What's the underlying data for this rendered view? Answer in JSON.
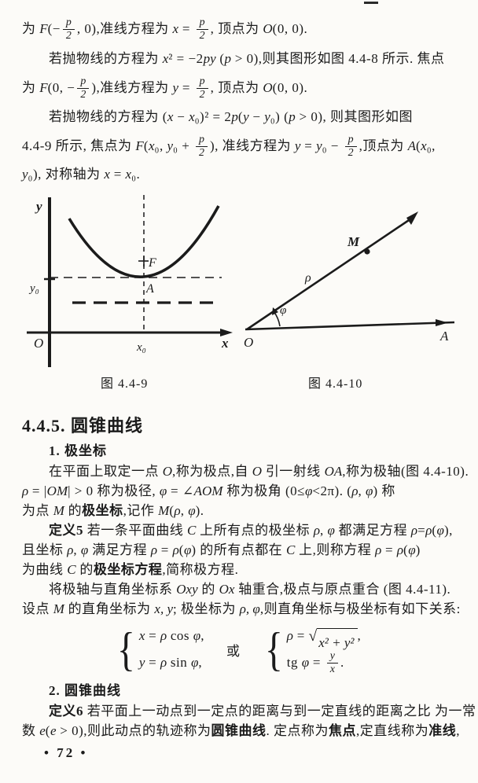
{
  "page_number": "• 72 •",
  "intro": {
    "lines": [
      [
        {
          "s": "为 "
        },
        {
          "m": "F"
        },
        {
          "s": "(−"
        },
        {
          "f": [
            "p",
            "2"
          ]
        },
        {
          "s": ", 0)"
        },
        {
          "s": ",准线方程为 "
        },
        {
          "m": "x"
        },
        {
          "s": " = "
        },
        {
          "f": [
            "p",
            "2"
          ]
        },
        {
          "s": ", 顶点为 "
        },
        {
          "m": "O"
        },
        {
          "s": "(0, 0)."
        }
      ],
      [
        {
          "s": "若抛物线的方程为 "
        },
        {
          "m": "x"
        },
        {
          "s": "² = −2"
        },
        {
          "m": "py"
        },
        {
          "s": " ("
        },
        {
          "m": "p"
        },
        {
          "s": " > 0),则其图形如图 4.4-8 所示. 焦点"
        }
      ],
      [
        {
          "s": "为 "
        },
        {
          "m": "F"
        },
        {
          "s": "(0, −"
        },
        {
          "f": [
            "p",
            "2"
          ]
        },
        {
          "s": ")"
        },
        {
          "s": ",准线方程为 "
        },
        {
          "m": "y"
        },
        {
          "s": " = "
        },
        {
          "f": [
            "p",
            "2"
          ]
        },
        {
          "s": ", 顶点为 "
        },
        {
          "m": "O"
        },
        {
          "s": "(0, 0)."
        }
      ],
      [
        {
          "s": "若抛物线的方程为 ("
        },
        {
          "m": "x"
        },
        {
          "s": " − "
        },
        {
          "m": "x"
        },
        {
          "s": "₀)² = 2"
        },
        {
          "m": "p"
        },
        {
          "s": "("
        },
        {
          "m": "y"
        },
        {
          "s": " − "
        },
        {
          "m": "y"
        },
        {
          "s": "₀) ("
        },
        {
          "m": "p"
        },
        {
          "s": " > 0), 则其图形如图"
        }
      ],
      [
        {
          "s": "4.4-9 所示, 焦点为 "
        },
        {
          "m": "F"
        },
        {
          "s": "("
        },
        {
          "m": "x"
        },
        {
          "s": "₀, "
        },
        {
          "m": "y"
        },
        {
          "s": "₀ + "
        },
        {
          "f": [
            "p",
            "2"
          ]
        },
        {
          "s": "), 准线方程为 "
        },
        {
          "m": "y"
        },
        {
          "s": " = "
        },
        {
          "m": "y"
        },
        {
          "s": "₀ − "
        },
        {
          "f": [
            "p",
            "2"
          ]
        },
        {
          "s": ",顶点为 "
        },
        {
          "m": "A"
        },
        {
          "s": "("
        },
        {
          "m": "x"
        },
        {
          "s": "₀,"
        }
      ],
      [
        {
          "m": "y"
        },
        {
          "s": "₀), 对称轴为 "
        },
        {
          "m": "x"
        },
        {
          "s": " = "
        },
        {
          "m": "x"
        },
        {
          "s": "₀."
        }
      ]
    ]
  },
  "figures": {
    "fig9": {
      "caption": "图  4.4-9",
      "labels": {
        "y_axis": "y",
        "x_axis": "x",
        "origin": "O",
        "y0": "y₀",
        "x0": "x₀",
        "focus": "F",
        "vertex": "A"
      }
    },
    "fig10": {
      "caption": "图  4.4-10",
      "labels": {
        "pole": "O",
        "axis_end": "A",
        "point": "M",
        "rho": "ρ",
        "phi": "φ"
      }
    }
  },
  "section": {
    "heading": "4.4.5. 圆锥曲线",
    "sub1": "1. 极坐标",
    "sub2": "2. 圆锥曲线"
  },
  "polar": {
    "lines": [
      [
        {
          "s": "在平面上取定一点 "
        },
        {
          "m": "O"
        },
        {
          "s": ",称为极点,自 "
        },
        {
          "m": "O"
        },
        {
          "s": " 引一射线 "
        },
        {
          "m": "OA"
        },
        {
          "s": ",称为极轴(图 4.4-10)."
        }
      ],
      [
        {
          "m": "ρ"
        },
        {
          "s": " = |"
        },
        {
          "m": "OM"
        },
        {
          "s": "| > 0 称为极径, "
        },
        {
          "m": "φ"
        },
        {
          "s": " = ∠"
        },
        {
          "m": "AOM"
        },
        {
          "s": " 称为极角 (0≤"
        },
        {
          "m": "φ"
        },
        {
          "s": "<2π). ("
        },
        {
          "m": "ρ"
        },
        {
          "s": ", "
        },
        {
          "m": "φ"
        },
        {
          "s": ") 称"
        }
      ],
      [
        {
          "s": "为点 "
        },
        {
          "m": "M"
        },
        {
          "s": " 的"
        },
        {
          "b": "极坐标"
        },
        {
          "s": ",记作 "
        },
        {
          "m": "M"
        },
        {
          "s": "("
        },
        {
          "m": "ρ"
        },
        {
          "s": ", "
        },
        {
          "m": "φ"
        },
        {
          "s": ")."
        }
      ],
      [
        {
          "b": "定义5"
        },
        {
          "s": "  若一条平面曲线 "
        },
        {
          "m": "C"
        },
        {
          "s": " 上所有点的极坐标 "
        },
        {
          "m": "ρ"
        },
        {
          "s": ", "
        },
        {
          "m": "φ"
        },
        {
          "s": " 都满足方程 "
        },
        {
          "m": "ρ"
        },
        {
          "s": "="
        },
        {
          "m": "ρ"
        },
        {
          "s": "("
        },
        {
          "m": "φ"
        },
        {
          "s": "),"
        }
      ],
      [
        {
          "s": "且坐标 "
        },
        {
          "m": "ρ"
        },
        {
          "s": ", "
        },
        {
          "m": "φ"
        },
        {
          "s": " 满足方程 "
        },
        {
          "m": "ρ"
        },
        {
          "s": " = "
        },
        {
          "m": "ρ"
        },
        {
          "s": "("
        },
        {
          "m": "φ"
        },
        {
          "s": ") 的所有点都在 "
        },
        {
          "m": "C"
        },
        {
          "s": " 上,则称方程 "
        },
        {
          "m": "ρ"
        },
        {
          "s": " = "
        },
        {
          "m": "ρ"
        },
        {
          "s": "("
        },
        {
          "m": "φ"
        },
        {
          "s": ")"
        }
      ],
      [
        {
          "s": "为曲线 "
        },
        {
          "m": "C"
        },
        {
          "s": " 的"
        },
        {
          "b": "极坐标方程"
        },
        {
          "s": ",简称极方程."
        }
      ],
      [
        {
          "s": "将极轴与直角坐标系 "
        },
        {
          "m": "Oxy"
        },
        {
          "s": " 的 "
        },
        {
          "m": "Ox"
        },
        {
          "s": " 轴重合,极点与原点重合 (图 4.4-11)."
        }
      ],
      [
        {
          "s": "设点 "
        },
        {
          "m": "M"
        },
        {
          "s": " 的直角坐标为 "
        },
        {
          "m": "x, y"
        },
        {
          "s": "; 极坐标为 "
        },
        {
          "m": "ρ, φ"
        },
        {
          "s": ",则直角坐标与极坐标有如下关系:"
        }
      ]
    ]
  },
  "equations": {
    "left": [
      [
        {
          "m": "x"
        },
        {
          "s": " = "
        },
        {
          "m": "ρ"
        },
        {
          "s": " cos "
        },
        {
          "m": "φ"
        },
        {
          "s": ","
        }
      ],
      [
        {
          "m": "y"
        },
        {
          "s": " = "
        },
        {
          "m": "ρ"
        },
        {
          "s": " sin "
        },
        {
          "m": "φ"
        },
        {
          "s": ","
        }
      ]
    ],
    "or": "或",
    "right": [
      [
        {
          "m": "ρ"
        },
        {
          "s": " = "
        },
        {
          "r": "x² + y²"
        },
        {
          "s": ","
        }
      ],
      [
        {
          "s": "tg "
        },
        {
          "m": "φ"
        },
        {
          "s": " = "
        },
        {
          "f": [
            "y",
            "x"
          ]
        },
        {
          "s": "."
        }
      ]
    ]
  },
  "conic": {
    "lines": [
      [
        {
          "b": "定义6"
        },
        {
          "s": "  若平面上一动点到一定点的距离与到一定直线的距离之比 为一常"
        }
      ],
      [
        {
          "s": "数 "
        },
        {
          "m": "e"
        },
        {
          "s": "("
        },
        {
          "m": "e"
        },
        {
          "s": " > 0),则此动点的轨迹称为"
        },
        {
          "b": "圆锥曲线"
        },
        {
          "s": ". 定点称为"
        },
        {
          "b": "焦点"
        },
        {
          "s": ",定直线称为"
        },
        {
          "b": "准线"
        },
        {
          "s": ","
        }
      ]
    ]
  }
}
